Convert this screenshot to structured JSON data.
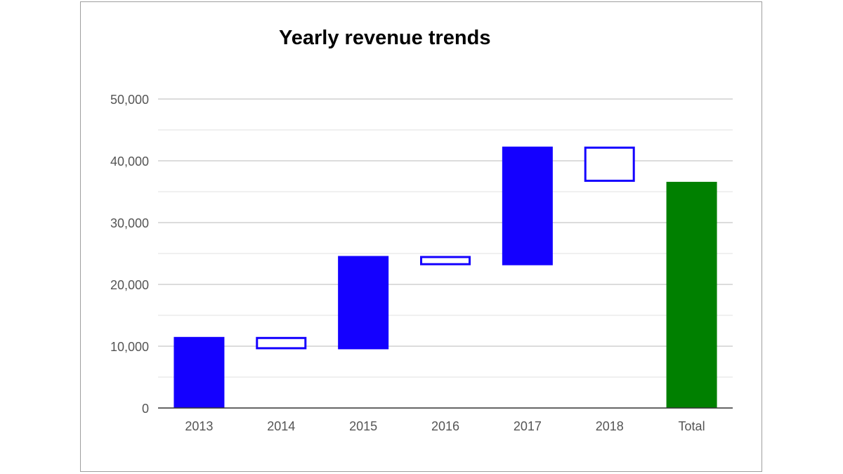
{
  "chart_data": {
    "type": "waterfall",
    "title": "Yearly revenue trends",
    "xlabel": "",
    "ylabel": "",
    "categories": [
      "2013",
      "2014",
      "2015",
      "2016",
      "2017",
      "2018",
      "Total"
    ],
    "values": [
      11500,
      -2000,
      15100,
      -1500,
      19200,
      -5700,
      36600
    ],
    "is_total": [
      false,
      false,
      false,
      false,
      false,
      false,
      true
    ],
    "ylim": [
      0,
      50000
    ],
    "yticks": [
      0,
      10000,
      20000,
      30000,
      40000,
      50000
    ],
    "ytick_labels": [
      "0",
      "10,000",
      "20,000",
      "30,000",
      "40,000",
      "50,000"
    ],
    "grid": true,
    "legend": "none",
    "colors": {
      "increase": "#1400ff",
      "decrease": "#1400ff",
      "total": "#008000"
    },
    "decrease_style": "outline"
  }
}
